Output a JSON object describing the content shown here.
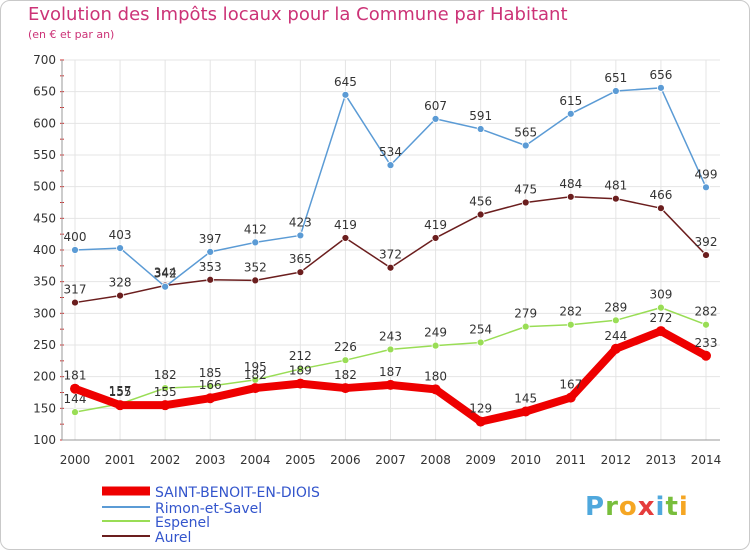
{
  "header": {
    "title": "Evolution des Impôts locaux pour la Commune par Habitant",
    "subtitle": "(en € et par an)"
  },
  "logo": {
    "text": "Proxiti"
  },
  "chart_data": {
    "type": "line",
    "title": "Evolution des Impôts locaux pour la Commune par Habitant",
    "ylabel": "(en € et par an)",
    "xlabel": "",
    "x": [
      "2000",
      "2001",
      "2002",
      "2003",
      "2004",
      "2005",
      "2006",
      "2007",
      "2008",
      "2009",
      "2010",
      "2011",
      "2012",
      "2013",
      "2014"
    ],
    "ylim": [
      100,
      700
    ],
    "yticks": [
      100,
      150,
      200,
      250,
      300,
      350,
      400,
      450,
      500,
      550,
      600,
      650,
      700
    ],
    "grid": true,
    "legend_position": "bottom-left",
    "series": [
      {
        "name": "Aurel",
        "color": "#6b1e1e",
        "values": [
          317,
          328,
          344,
          353,
          352,
          365,
          419,
          372,
          419,
          456,
          475,
          484,
          481,
          466,
          392
        ]
      },
      {
        "name": "Espenel",
        "color": "#99dd55",
        "values": [
          144,
          157,
          182,
          185,
          195,
          212,
          226,
          243,
          249,
          254,
          279,
          282,
          289,
          309,
          282
        ]
      },
      {
        "name": "Rimon-et-Savel",
        "color": "#5b9bd5",
        "values": [
          400,
          403,
          342,
          397,
          412,
          423,
          645,
          534,
          607,
          591,
          565,
          615,
          651,
          656,
          499
        ]
      },
      {
        "name": "SAINT-BENOIT-EN-DIOIS",
        "color": "#ee0000",
        "values": [
          181,
          155,
          155,
          166,
          182,
          189,
          182,
          187,
          180,
          129,
          145,
          167,
          244,
          272,
          233
        ]
      }
    ],
    "value_labels": {
      "Aurel": [
        "317",
        "328",
        "344",
        "353",
        "352",
        "365",
        "419",
        "372",
        "419",
        "456",
        "475",
        "484",
        "481",
        "466",
        "392"
      ],
      "Espenel": [
        "144",
        "157",
        "182",
        "185",
        "195",
        "212",
        "226",
        "243",
        "249",
        "254",
        "279",
        "282",
        "289",
        "309",
        "282"
      ],
      "Rimon-et-Savel": [
        "400",
        "403",
        "342",
        "397",
        "412",
        "423",
        "645",
        "534",
        "607",
        "591",
        "565",
        "615",
        "651",
        "656",
        "499"
      ],
      "SAINT-BENOIT-EN-DIOIS": [
        "181",
        "155",
        "155",
        "166",
        "182",
        "189",
        "182",
        "187",
        "180",
        "129",
        "145",
        "167",
        "244",
        "272",
        "233"
      ]
    },
    "legend": [
      "SAINT-BENOIT-EN-DIOIS",
      "Rimon-et-Savel",
      "Espenel",
      "Aurel"
    ]
  }
}
